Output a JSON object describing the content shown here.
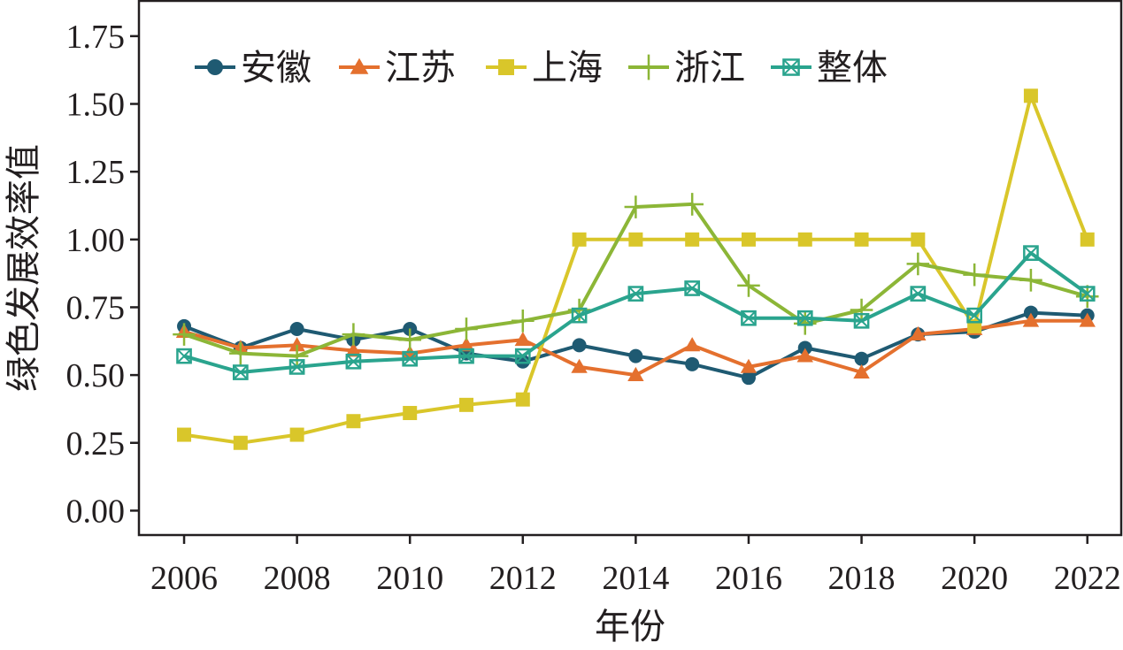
{
  "chart_data": {
    "type": "line",
    "xlabel": "年份",
    "ylabel": "绿色发展效率值",
    "x": [
      2006,
      2007,
      2008,
      2009,
      2010,
      2011,
      2012,
      2013,
      2014,
      2015,
      2016,
      2017,
      2018,
      2019,
      2020,
      2021,
      2022
    ],
    "x_ticks": [
      "2006",
      "2008",
      "2010",
      "2012",
      "2014",
      "2016",
      "2018",
      "2020",
      "2022"
    ],
    "y_ticks": [
      "0.00",
      "0.25",
      "0.50",
      "0.75",
      "1.00",
      "1.25",
      "1.50",
      "1.75"
    ],
    "xlim": [
      2005.2,
      2022.6
    ],
    "ylim": [
      -0.09,
      1.88
    ],
    "grid": false,
    "legend_position": "top-left",
    "series": [
      {
        "name": "安徽",
        "color": "#1f5a72",
        "marker": "circle",
        "values": [
          0.68,
          0.6,
          0.67,
          0.63,
          0.67,
          0.58,
          0.55,
          0.61,
          0.57,
          0.54,
          0.49,
          0.6,
          0.56,
          0.65,
          0.66,
          0.73,
          0.72
        ]
      },
      {
        "name": "江苏",
        "color": "#e4702e",
        "marker": "triangle",
        "values": [
          0.66,
          0.6,
          0.61,
          0.59,
          0.58,
          0.61,
          0.63,
          0.53,
          0.5,
          0.61,
          0.53,
          0.57,
          0.51,
          0.65,
          0.67,
          0.7,
          0.7
        ]
      },
      {
        "name": "上海",
        "color": "#d9c62a",
        "marker": "square",
        "values": [
          0.28,
          0.25,
          0.28,
          0.33,
          0.36,
          0.39,
          0.41,
          1.0,
          1.0,
          1.0,
          1.0,
          1.0,
          1.0,
          1.0,
          0.68,
          1.53,
          1.0
        ]
      },
      {
        "name": "浙江",
        "color": "#8cb637",
        "marker": "plus",
        "values": [
          0.65,
          0.58,
          0.57,
          0.65,
          0.63,
          0.67,
          0.7,
          0.74,
          1.12,
          1.13,
          0.83,
          0.69,
          0.74,
          0.91,
          0.87,
          0.85,
          0.79
        ]
      },
      {
        "name": "整体",
        "color": "#2aa48e",
        "marker": "square-x",
        "values": [
          0.57,
          0.51,
          0.53,
          0.55,
          0.56,
          0.57,
          0.57,
          0.72,
          0.8,
          0.82,
          0.71,
          0.71,
          0.7,
          0.8,
          0.72,
          0.95,
          0.8
        ]
      }
    ]
  }
}
